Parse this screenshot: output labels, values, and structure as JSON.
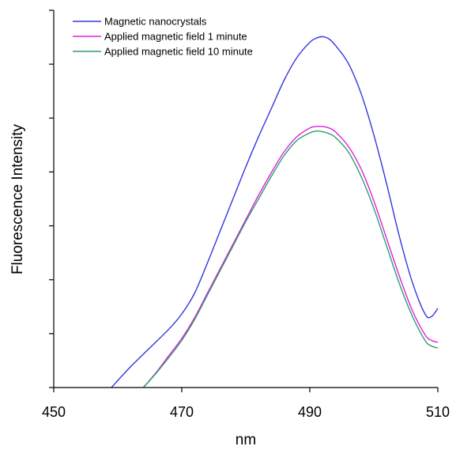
{
  "chart_data": {
    "type": "line",
    "title": "",
    "xlabel": "nm",
    "ylabel": "Fluorescence Intensity",
    "xlim": [
      450,
      510
    ],
    "ylim": [
      0,
      100
    ],
    "x_ticks": [
      450,
      470,
      490,
      510
    ],
    "x_tick_labels": [
      "450",
      "470",
      "490",
      "510"
    ],
    "y_tick_count": 7,
    "y_tick_labels_shown": false,
    "grid": false,
    "legend_position": "top-left",
    "series": [
      {
        "name": "Magnetic nanocrystals",
        "color": "#3535e0",
        "x": [
          459,
          462,
          465,
          468,
          470,
          472,
          474,
          476,
          478,
          480,
          482,
          484,
          486,
          488,
          490,
          491,
          492,
          493,
          494,
          496,
          498,
          500,
          502,
          504,
          506,
          508,
          509,
          510
        ],
        "y": [
          0,
          5.5,
          10.5,
          15.5,
          19.5,
          25,
          33,
          41.5,
          50,
          58.5,
          66.5,
          74,
          81.5,
          87.5,
          91.5,
          92.6,
          93,
          92.4,
          90.7,
          86,
          78,
          67,
          54,
          40,
          28,
          19.5,
          18.8,
          21
        ]
      },
      {
        "name": "Applied magnetic field 1 minute",
        "color": "#e020e0",
        "x": [
          464,
          466,
          468,
          470,
          472,
          474,
          476,
          478,
          480,
          482,
          484,
          486,
          488,
          490,
          491,
          492,
          493,
          494,
          496,
          498,
          500,
          502,
          504,
          506,
          508,
          509,
          510
        ],
        "y": [
          0,
          4,
          8.5,
          13,
          18.5,
          25,
          31.5,
          38,
          44.5,
          51,
          57,
          62.5,
          66.5,
          68.8,
          69.2,
          69.2,
          68.8,
          67.8,
          64,
          58,
          49.5,
          39.5,
          29.5,
          20.5,
          14,
          12.5,
          12
        ]
      },
      {
        "name": "Applied magnetic field 10 minute",
        "color": "#2e9e6e",
        "x": [
          464,
          466,
          468,
          470,
          472,
          474,
          476,
          478,
          480,
          482,
          484,
          486,
          488,
          490,
          491,
          492,
          493,
          494,
          496,
          498,
          500,
          502,
          504,
          506,
          508,
          509,
          510
        ],
        "y": [
          0,
          3.8,
          8,
          12.5,
          18,
          24.5,
          31,
          37.5,
          44,
          50,
          56,
          61.5,
          65.5,
          67.5,
          68,
          67.8,
          67.3,
          66.3,
          62.5,
          56,
          47.5,
          37.5,
          27.5,
          19,
          12.5,
          11,
          10.5
        ]
      }
    ]
  }
}
